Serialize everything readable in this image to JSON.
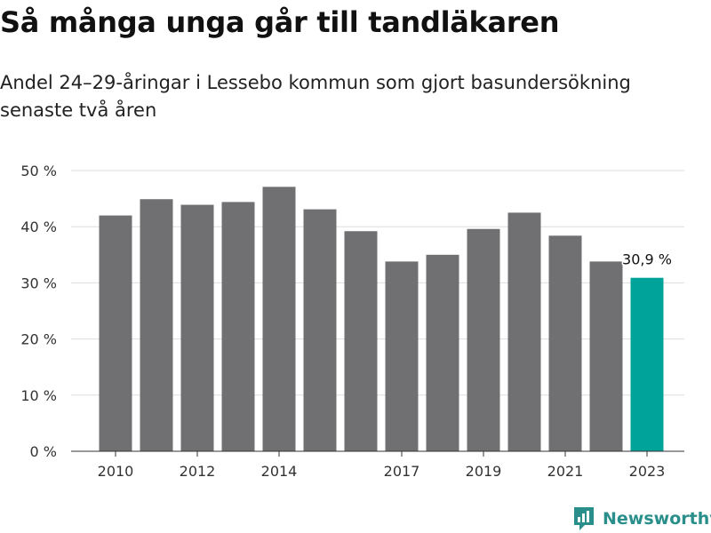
{
  "title": "Så många unga går till tandläkaren",
  "subtitle": "Andel 24–29-åringar i Lessebo kommun som gjort basundersökning senaste två åren",
  "brand": {
    "name": "Newsworthy",
    "icon": "newsworthy-logo-icon"
  },
  "colors": {
    "default_bar": "#707073",
    "highlight_bar": "#00a39a",
    "grid": "#dddddd",
    "brand": "#2a8f8a"
  },
  "chart_data": {
    "type": "bar",
    "title": "Så många unga går till tandläkaren",
    "subtitle": "Andel 24–29-åringar i Lessebo kommun som gjort basundersökning senaste två åren",
    "categories": [
      "2010",
      "2011",
      "2012",
      "2013",
      "2014",
      "2015",
      "2016",
      "2017",
      "2018",
      "2019",
      "2020",
      "2021",
      "2022",
      "2023"
    ],
    "values": [
      42.0,
      44.9,
      43.9,
      44.4,
      47.1,
      43.1,
      39.2,
      33.8,
      35.0,
      39.6,
      42.5,
      38.4,
      33.8,
      30.9
    ],
    "x_tick_labels": [
      "2010",
      "2012",
      "2014",
      "2017",
      "2019",
      "2021",
      "2023"
    ],
    "y_ticks": [
      0,
      10,
      20,
      30,
      40,
      50
    ],
    "y_tick_labels": [
      "0 %",
      "10 %",
      "20 %",
      "30 %",
      "40 %",
      "50 %"
    ],
    "ylim": [
      0,
      50
    ],
    "grid": true,
    "highlight_index": 13,
    "annotations": [
      {
        "category": "2023",
        "text": "30,9 %"
      }
    ],
    "xlabel": "",
    "ylabel": ""
  }
}
